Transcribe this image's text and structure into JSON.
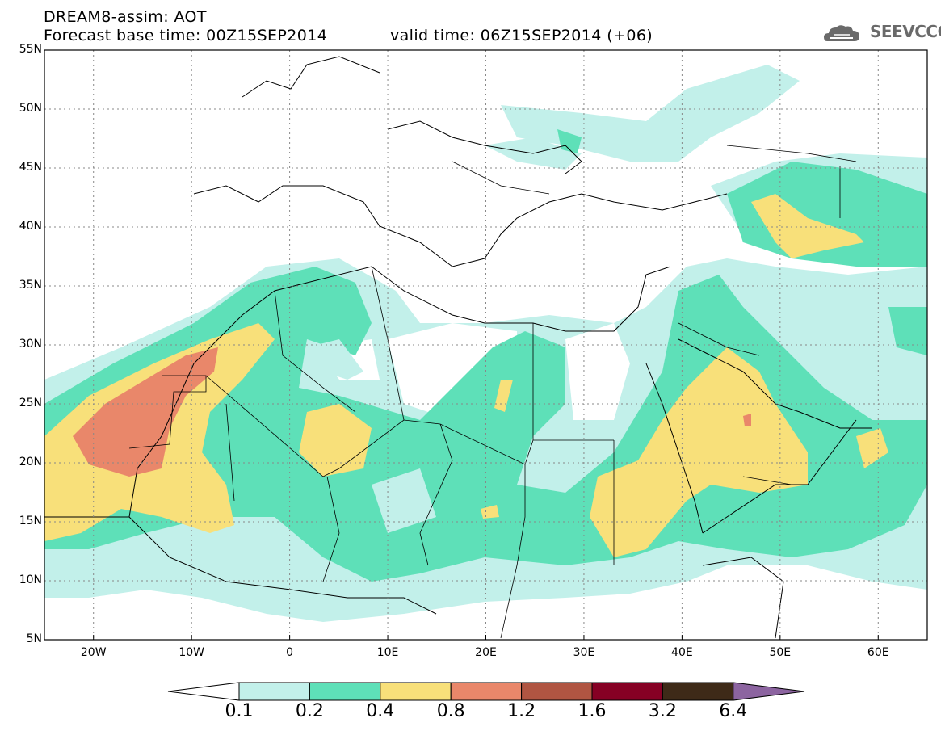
{
  "header": {
    "title_line1": "DREAM8-assim: AOT",
    "title_line2": "Forecast base time: 00Z15SEP2014",
    "valid_time": "valid time: 06Z15SEP2014 (+06)",
    "logo_text": "SEEVCCC",
    "logo_icon": "cloud-icon"
  },
  "map": {
    "lat_labels": [
      "55N",
      "50N",
      "45N",
      "40N",
      "35N",
      "30N",
      "25N",
      "20N",
      "15N",
      "10N",
      "5N"
    ],
    "lon_labels": [
      "20W",
      "10W",
      "0",
      "10E",
      "20E",
      "30E",
      "40E",
      "50E",
      "60E"
    ],
    "lon_range": [
      -25,
      65
    ],
    "lat_range": [
      5,
      55
    ],
    "grid": "dotted"
  },
  "legend": {
    "levels": [
      "0.1",
      "0.2",
      "0.4",
      "0.8",
      "1.2",
      "1.6",
      "3.2",
      "6.4"
    ],
    "colors": [
      "#c2f0ea",
      "#5ee0b8",
      "#f8e07a",
      "#e9876a",
      "#b05542",
      "#860024",
      "#3e2a18"
    ],
    "under_color": "#ffffff",
    "over_color": "#8c64a0"
  }
}
